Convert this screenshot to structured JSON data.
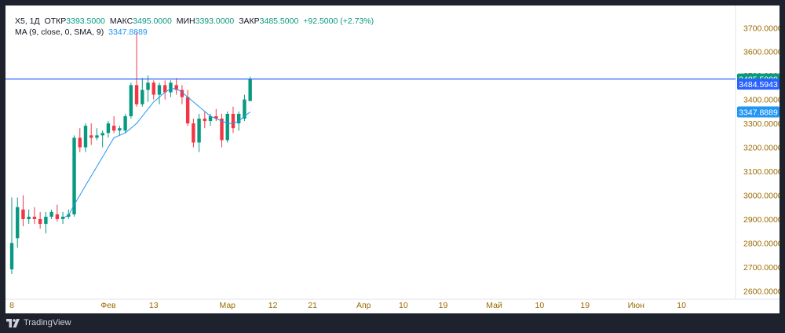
{
  "legend": {
    "symbol": "X5, 1Д",
    "open_label": "ОТКР",
    "open_value": "3393.5000",
    "high_label": "МАКС",
    "high_value": "3495.0000",
    "low_label": "МИН",
    "low_value": "3393.0000",
    "close_label": "ЗАКР",
    "close_value": "3485.5000",
    "change": "+92.5000 (+2.73%)",
    "ma_label": "MA (9, close, 0, SMA, 9)",
    "ma_value": "3347.8889"
  },
  "footer": {
    "brand": "TradingView"
  },
  "colors": {
    "up": "#089981",
    "down": "#f23645",
    "ma": "#2196f3",
    "hline": "#2962ff",
    "axis_text": "#9b6b00",
    "background": "#1e222d"
  },
  "chart_data": {
    "type": "candlestick",
    "ylim": [
      2565,
      3760
    ],
    "y_ticks": [
      "2600.0000",
      "2700.0000",
      "2800.0000",
      "2900.0000",
      "3000.0000",
      "3100.0000",
      "3200.0000",
      "3300.0000",
      "3400.0000",
      "3500.0000",
      "3600.0000",
      "3700.0000"
    ],
    "x_ticks": [
      {
        "label": "8",
        "i": 0
      },
      {
        "label": "Фев",
        "i": 17
      },
      {
        "label": "13",
        "i": 25
      },
      {
        "label": "Мар",
        "i": 38
      },
      {
        "label": "12",
        "i": 46
      },
      {
        "label": "21",
        "i": 53
      },
      {
        "label": "Апр",
        "i": 62
      },
      {
        "label": "10",
        "i": 69
      },
      {
        "label": "19",
        "i": 76
      },
      {
        "label": "Май",
        "i": 85
      },
      {
        "label": "10",
        "i": 93
      },
      {
        "label": "19",
        "i": 101
      },
      {
        "label": "Июн",
        "i": 110
      },
      {
        "label": "10",
        "i": 118
      }
    ],
    "horizontal_line": 3485.5,
    "price_labels": [
      {
        "value": "3485.5000",
        "price": 3485.5,
        "color": "#089981"
      },
      {
        "value": "3484.5943",
        "price": 3464,
        "color": "#2962ff"
      },
      {
        "value": "3347.8889",
        "price": 3347.9,
        "color": "#2196f3"
      }
    ],
    "candles": [
      {
        "o": 2690,
        "h": 2990,
        "l": 2670,
        "c": 2800
      },
      {
        "o": 2820,
        "h": 2990,
        "l": 2780,
        "c": 2950
      },
      {
        "o": 2940,
        "h": 3000,
        "l": 2870,
        "c": 2900
      },
      {
        "o": 2900,
        "h": 2940,
        "l": 2880,
        "c": 2910
      },
      {
        "o": 2910,
        "h": 2950,
        "l": 2880,
        "c": 2900
      },
      {
        "o": 2900,
        "h": 2930,
        "l": 2860,
        "c": 2880
      },
      {
        "o": 2880,
        "h": 2930,
        "l": 2840,
        "c": 2910
      },
      {
        "o": 2910,
        "h": 2940,
        "l": 2900,
        "c": 2930
      },
      {
        "o": 2920,
        "h": 2960,
        "l": 2890,
        "c": 2900
      },
      {
        "o": 2900,
        "h": 2930,
        "l": 2880,
        "c": 2910
      },
      {
        "o": 2910,
        "h": 2940,
        "l": 2900,
        "c": 2920
      },
      {
        "o": 2920,
        "h": 3250,
        "l": 2910,
        "c": 3240
      },
      {
        "o": 3240,
        "h": 3280,
        "l": 3180,
        "c": 3200
      },
      {
        "o": 3200,
        "h": 3300,
        "l": 3180,
        "c": 3290
      },
      {
        "o": 3250,
        "h": 3300,
        "l": 3210,
        "c": 3240
      },
      {
        "o": 3240,
        "h": 3280,
        "l": 3230,
        "c": 3250
      },
      {
        "o": 3250,
        "h": 3270,
        "l": 3200,
        "c": 3260
      },
      {
        "o": 3260,
        "h": 3310,
        "l": 3240,
        "c": 3300
      },
      {
        "o": 3290,
        "h": 3330,
        "l": 3260,
        "c": 3270
      },
      {
        "o": 3270,
        "h": 3290,
        "l": 3250,
        "c": 3280
      },
      {
        "o": 3270,
        "h": 3340,
        "l": 3260,
        "c": 3330
      },
      {
        "o": 3330,
        "h": 3470,
        "l": 3320,
        "c": 3460
      },
      {
        "o": 3460,
        "h": 3680,
        "l": 3370,
        "c": 3380
      },
      {
        "o": 3380,
        "h": 3490,
        "l": 3370,
        "c": 3440
      },
      {
        "o": 3440,
        "h": 3500,
        "l": 3390,
        "c": 3470
      },
      {
        "o": 3470,
        "h": 3480,
        "l": 3400,
        "c": 3420
      },
      {
        "o": 3420,
        "h": 3470,
        "l": 3380,
        "c": 3460
      },
      {
        "o": 3460,
        "h": 3480,
        "l": 3400,
        "c": 3430
      },
      {
        "o": 3430,
        "h": 3480,
        "l": 3410,
        "c": 3470
      },
      {
        "o": 3460,
        "h": 3490,
        "l": 3420,
        "c": 3440
      },
      {
        "o": 3440,
        "h": 3460,
        "l": 3380,
        "c": 3410
      },
      {
        "o": 3410,
        "h": 3440,
        "l": 3290,
        "c": 3300
      },
      {
        "o": 3300,
        "h": 3320,
        "l": 3200,
        "c": 3220
      },
      {
        "o": 3220,
        "h": 3340,
        "l": 3180,
        "c": 3320
      },
      {
        "o": 3320,
        "h": 3350,
        "l": 3280,
        "c": 3310
      },
      {
        "o": 3310,
        "h": 3340,
        "l": 3290,
        "c": 3330
      },
      {
        "o": 3330,
        "h": 3360,
        "l": 3310,
        "c": 3320
      },
      {
        "o": 3320,
        "h": 3340,
        "l": 3200,
        "c": 3230
      },
      {
        "o": 3230,
        "h": 3350,
        "l": 3220,
        "c": 3340
      },
      {
        "o": 3340,
        "h": 3370,
        "l": 3260,
        "c": 3280
      },
      {
        "o": 3300,
        "h": 3350,
        "l": 3270,
        "c": 3340
      },
      {
        "o": 3320,
        "h": 3420,
        "l": 3310,
        "c": 3400
      },
      {
        "o": 3393.5,
        "h": 3495,
        "l": 3393,
        "c": 3485.5
      }
    ],
    "ma": [
      {
        "i": 9,
        "v": 2905
      },
      {
        "i": 10,
        "v": 2915
      },
      {
        "i": 11,
        "v": 2960
      },
      {
        "i": 12,
        "v": 3000
      },
      {
        "i": 13,
        "v": 3040
      },
      {
        "i": 14,
        "v": 3080
      },
      {
        "i": 15,
        "v": 3120
      },
      {
        "i": 16,
        "v": 3160
      },
      {
        "i": 17,
        "v": 3200
      },
      {
        "i": 18,
        "v": 3240
      },
      {
        "i": 19,
        "v": 3250
      },
      {
        "i": 20,
        "v": 3260
      },
      {
        "i": 21,
        "v": 3280
      },
      {
        "i": 22,
        "v": 3300
      },
      {
        "i": 23,
        "v": 3330
      },
      {
        "i": 24,
        "v": 3360
      },
      {
        "i": 25,
        "v": 3390
      },
      {
        "i": 26,
        "v": 3410
      },
      {
        "i": 27,
        "v": 3430
      },
      {
        "i": 28,
        "v": 3445
      },
      {
        "i": 29,
        "v": 3445
      },
      {
        "i": 30,
        "v": 3430
      },
      {
        "i": 31,
        "v": 3410
      },
      {
        "i": 32,
        "v": 3390
      },
      {
        "i": 33,
        "v": 3370
      },
      {
        "i": 34,
        "v": 3350
      },
      {
        "i": 35,
        "v": 3330
      },
      {
        "i": 36,
        "v": 3320
      },
      {
        "i": 37,
        "v": 3310
      },
      {
        "i": 38,
        "v": 3300
      },
      {
        "i": 39,
        "v": 3300
      },
      {
        "i": 40,
        "v": 3310
      },
      {
        "i": 41,
        "v": 3330
      },
      {
        "i": 42,
        "v": 3347.9
      }
    ]
  }
}
